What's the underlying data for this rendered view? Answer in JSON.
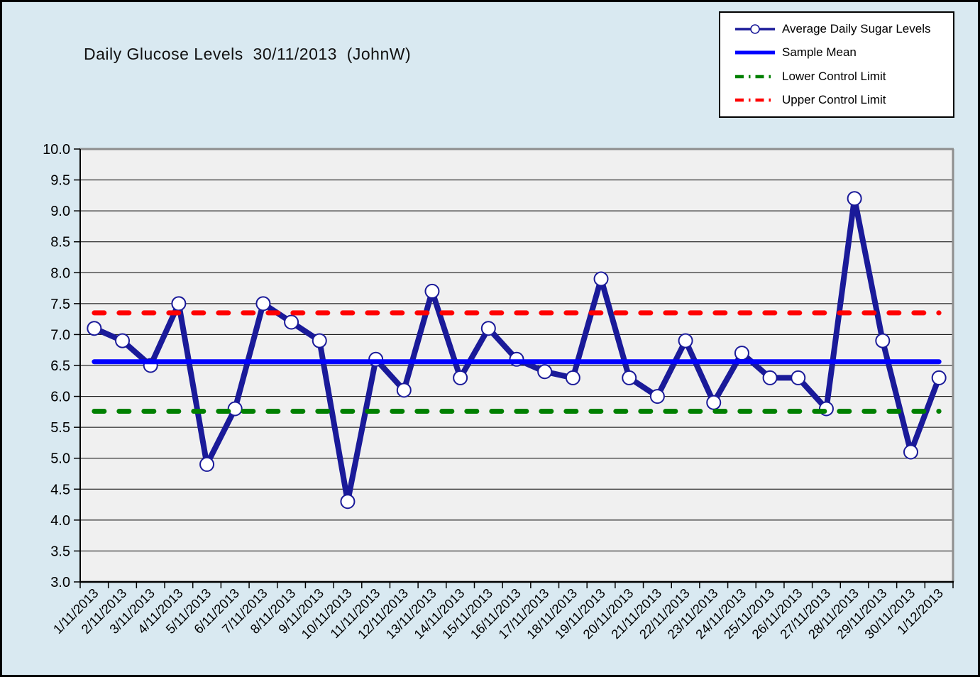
{
  "window": {
    "background": "#D9E9F1",
    "outer_border_color": "#000000"
  },
  "chart_data": {
    "type": "line",
    "title": "Daily Glucose Levels  30/11/2013  (JohnW)",
    "x": [
      "1/11/2013",
      "2/11/2013",
      "3/11/2013",
      "4/11/2013",
      "5/11/2013",
      "6/11/2013",
      "7/11/2013",
      "8/11/2013",
      "9/11/2013",
      "10/11/2013",
      "11/11/2013",
      "12/11/2013",
      "13/11/2013",
      "14/11/2013",
      "15/11/2013",
      "16/11/2013",
      "17/11/2013",
      "18/11/2013",
      "19/11/2013",
      "20/11/2013",
      "21/11/2013",
      "22/11/2013",
      "23/11/2013",
      "24/11/2013",
      "25/11/2013",
      "26/11/2013",
      "27/11/2013",
      "28/11/2013",
      "29/11/2013",
      "30/11/2013",
      "1/12/2013"
    ],
    "series": [
      {
        "name": "Average Daily Sugar Levels",
        "kind": "line-with-markers",
        "color": "#1A1A99",
        "marker": {
          "shape": "open-circle",
          "fill": "#FFFFFF"
        },
        "values": [
          7.1,
          6.9,
          6.5,
          7.5,
          4.9,
          5.8,
          7.5,
          7.2,
          6.9,
          4.3,
          6.6,
          6.1,
          7.7,
          6.3,
          7.1,
          6.6,
          6.4,
          6.3,
          7.9,
          6.3,
          6.0,
          6.9,
          5.9,
          6.7,
          6.3,
          6.3,
          5.8,
          9.2,
          6.9,
          5.1,
          6.3
        ]
      },
      {
        "name": "Sample Mean",
        "kind": "constant-hline",
        "color": "#0000FF",
        "style": "solid",
        "value": 6.56
      },
      {
        "name": "Lower Control Limit",
        "kind": "constant-hline",
        "color": "#008000",
        "style": "dashed",
        "value": 5.76
      },
      {
        "name": "Upper Control Limit",
        "kind": "constant-hline",
        "color": "#FF0000",
        "style": "dashed",
        "value": 7.35
      }
    ],
    "ylim": [
      3.0,
      10.0
    ],
    "ytick_step": 0.5,
    "xlabel": "",
    "ylabel": "",
    "grid": true,
    "legend_position": "top-right",
    "plot_background": "#F0F0F0",
    "grid_color": "#000000",
    "axis_color": "#000000",
    "upper_right_border_color": "#8E8E8E"
  }
}
